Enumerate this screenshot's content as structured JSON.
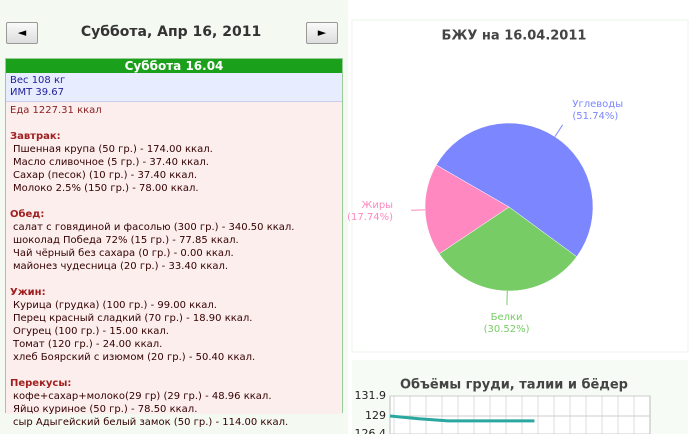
{
  "nav": {
    "prev": "◄",
    "date": "Суббота, Апр 16, 2011",
    "next": "►"
  },
  "day": {
    "title": "Суббота 16.04",
    "weight": "Вес 108 кг",
    "bmi": "ИМТ 39.67",
    "food": "Еда 1227.31 ккал",
    "meals": [
      {
        "title": "Завтрак:",
        "items": [
          "Пшенная крупа (50 гр.) - 174.00 ккал.",
          "Масло сливочное (5 гр.) - 37.40 ккал.",
          "Сахар (песок) (10 гр.) - 37.40 ккал.",
          "Молоко 2.5% (150 гр.) - 78.00 ккал."
        ]
      },
      {
        "title": "Обед:",
        "items": [
          "салат с говядиной и фасолью (300 гр.) - 340.50 ккал.",
          "шоколад Победа 72% (15 гр.) - 77.85 ккал.",
          "Чай чёрный без сахара (0 гр.) - 0.00 ккал.",
          "майонез чудесница (20 гр.) - 33.40 ккал."
        ]
      },
      {
        "title": "Ужин:",
        "items": [
          "Курица (грудка) (100 гр.) - 99.00 ккал.",
          "Перец красный сладкий (70 гр.) - 18.90 ккал.",
          "Огурец (100 гр.) - 15.00 ккал.",
          "Томат (120 гр.) - 24.00 ккал.",
          "хлеб Боярский с изюмом (20 гр.) - 50.40 ккал."
        ]
      },
      {
        "title": "Перекусы:",
        "items": [
          "кофе+сахар+молоко(29 гр) (29 гр.) - 48.96 ккал.",
          "Яйцо куриное (50 гр.) - 78.50 ккал.",
          "сыр Адыгейский белый замок (50 гр.) - 114.00 ккал."
        ]
      }
    ]
  },
  "chart_data": [
    {
      "type": "pie",
      "title": "БЖУ на 16.04.2011",
      "categories": [
        "Углеводы",
        "Белки",
        "Жиры"
      ],
      "values": [
        51.74,
        30.52,
        17.74
      ],
      "value_labels": [
        "(51.74%)",
        "(30.52%)",
        "(17.74%)"
      ],
      "colors": [
        "#7b86ff",
        "#77cc66",
        "#ff88c0"
      ]
    },
    {
      "type": "line",
      "title": "Объёмы груди, талии и бёдер",
      "categories": [
        null,
        null,
        null,
        null,
        null,
        null,
        null,
        null,
        null,
        null
      ],
      "series": [
        {
          "color": "#2aa8a0",
          "values": [
            129,
            128.6,
            128.3,
            128.3,
            128.3,
            128.3,
            null,
            null,
            null,
            null
          ]
        }
      ],
      "ylim": [
        126.4,
        131.9
      ],
      "yticks": [
        131.9,
        129,
        126.4
      ],
      "grid": true
    }
  ]
}
